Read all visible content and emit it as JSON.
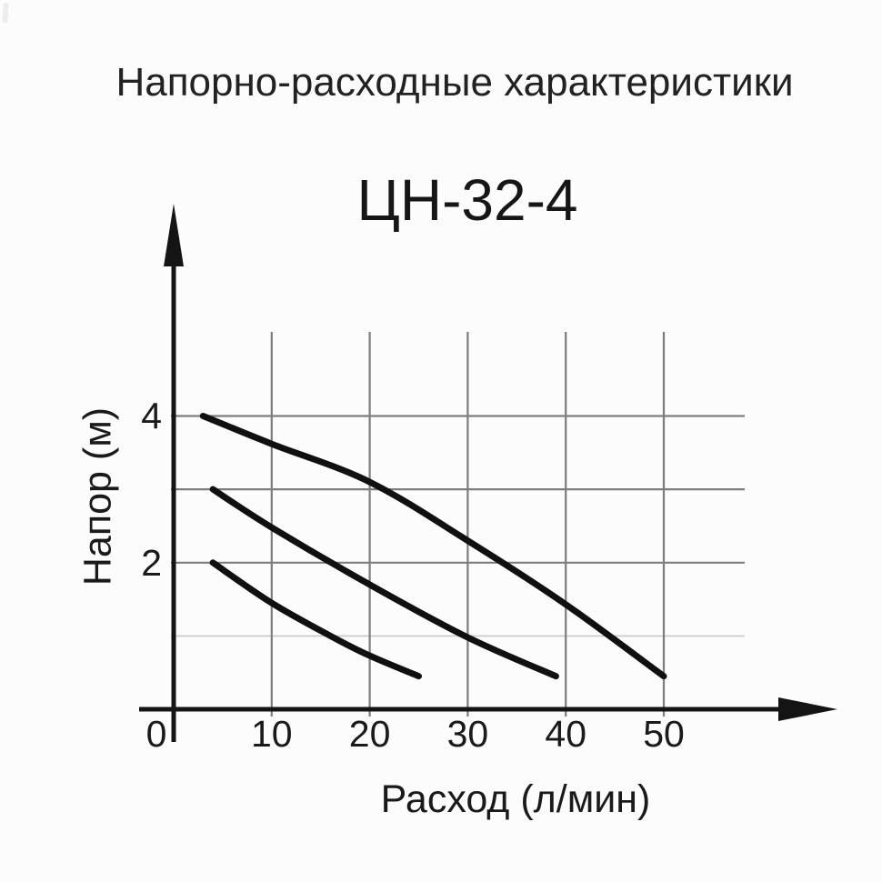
{
  "page": {
    "background": "#fcfcfc",
    "title": "Напорно-расходные характеристики",
    "title_color": "#222222",
    "corner_mark_color": "#bfbfbf"
  },
  "chart_data": {
    "type": "line",
    "title": "ЦН-32-4",
    "xlabel": "Расход (л/мин)",
    "ylabel": "Напор (м)",
    "x_ticks": [
      0,
      10,
      20,
      30,
      40,
      50
    ],
    "y_ticks": [
      2,
      4
    ],
    "x_gridlines": [
      10,
      20,
      30,
      40,
      50
    ],
    "y_gridlines": [
      1,
      2,
      3,
      4
    ],
    "y_gridlines_light": [
      1
    ],
    "xlim": [
      0,
      60
    ],
    "ylim": [
      0,
      6.5
    ],
    "grid": true,
    "legend": false,
    "series": [
      {
        "name": "upper-curve",
        "points": [
          [
            3,
            4.0
          ],
          [
            10,
            3.62
          ],
          [
            20,
            3.1
          ],
          [
            30,
            2.3
          ],
          [
            40,
            1.43
          ],
          [
            50,
            0.45
          ]
        ]
      },
      {
        "name": "middle-curve",
        "points": [
          [
            4,
            3.0
          ],
          [
            10,
            2.48
          ],
          [
            20,
            1.7
          ],
          [
            30,
            0.98
          ],
          [
            39,
            0.45
          ]
        ]
      },
      {
        "name": "lower-curve",
        "points": [
          [
            4,
            2.0
          ],
          [
            10,
            1.45
          ],
          [
            16,
            1.0
          ],
          [
            20,
            0.73
          ],
          [
            25,
            0.45
          ]
        ]
      }
    ],
    "colors": {
      "curve": "#101010",
      "axis": "#141414",
      "grid": "#7d7d7d",
      "grid_light": "#c8c8c8",
      "tick_text": "#1a1a1a"
    }
  }
}
